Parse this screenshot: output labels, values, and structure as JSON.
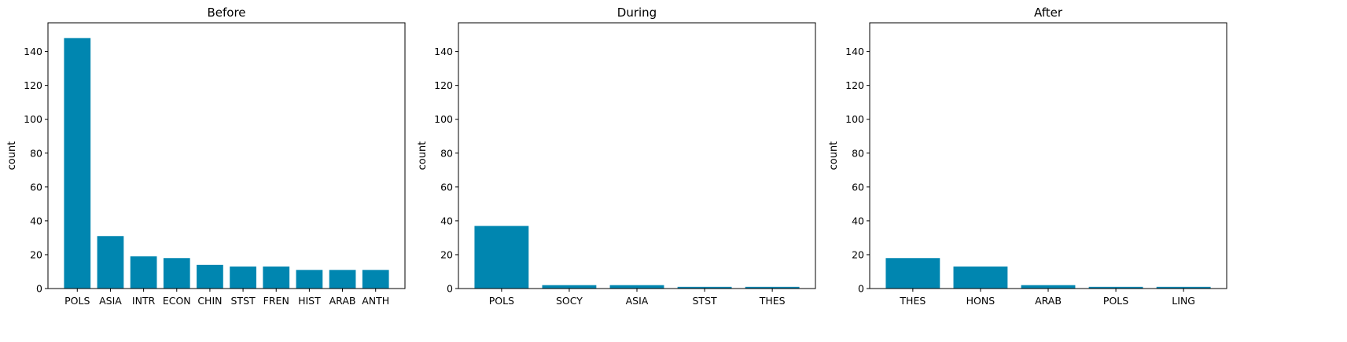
{
  "chart_data": [
    {
      "type": "bar",
      "title": "Before",
      "xlabel": "",
      "ylabel": "count",
      "ylim": [
        0,
        157
      ],
      "yticks": [
        0,
        20,
        40,
        60,
        80,
        100,
        120,
        140
      ],
      "grid": false,
      "bar_color": "#0086B0",
      "categories": [
        "POLS",
        "ASIA",
        "INTR",
        "ECON",
        "CHIN",
        "STST",
        "FREN",
        "HIST",
        "ARAB",
        "ANTH"
      ],
      "values": [
        148,
        31,
        19,
        18,
        14,
        13,
        13,
        11,
        11,
        11
      ]
    },
    {
      "type": "bar",
      "title": "During",
      "xlabel": "",
      "ylabel": "count",
      "ylim": [
        0,
        157
      ],
      "yticks": [
        0,
        20,
        40,
        60,
        80,
        100,
        120,
        140
      ],
      "grid": false,
      "bar_color": "#0086B0",
      "categories": [
        "POLS",
        "SOCY",
        "ASIA",
        "STST",
        "THES"
      ],
      "values": [
        37,
        2,
        2,
        1,
        1
      ]
    },
    {
      "type": "bar",
      "title": "After",
      "xlabel": "",
      "ylabel": "count",
      "ylim": [
        0,
        157
      ],
      "yticks": [
        0,
        20,
        40,
        60,
        80,
        100,
        120,
        140
      ],
      "grid": false,
      "bar_color": "#0086B0",
      "categories": [
        "THES",
        "HONS",
        "ARAB",
        "POLS",
        "LING"
      ],
      "values": [
        18,
        13,
        2,
        1,
        1
      ]
    }
  ]
}
